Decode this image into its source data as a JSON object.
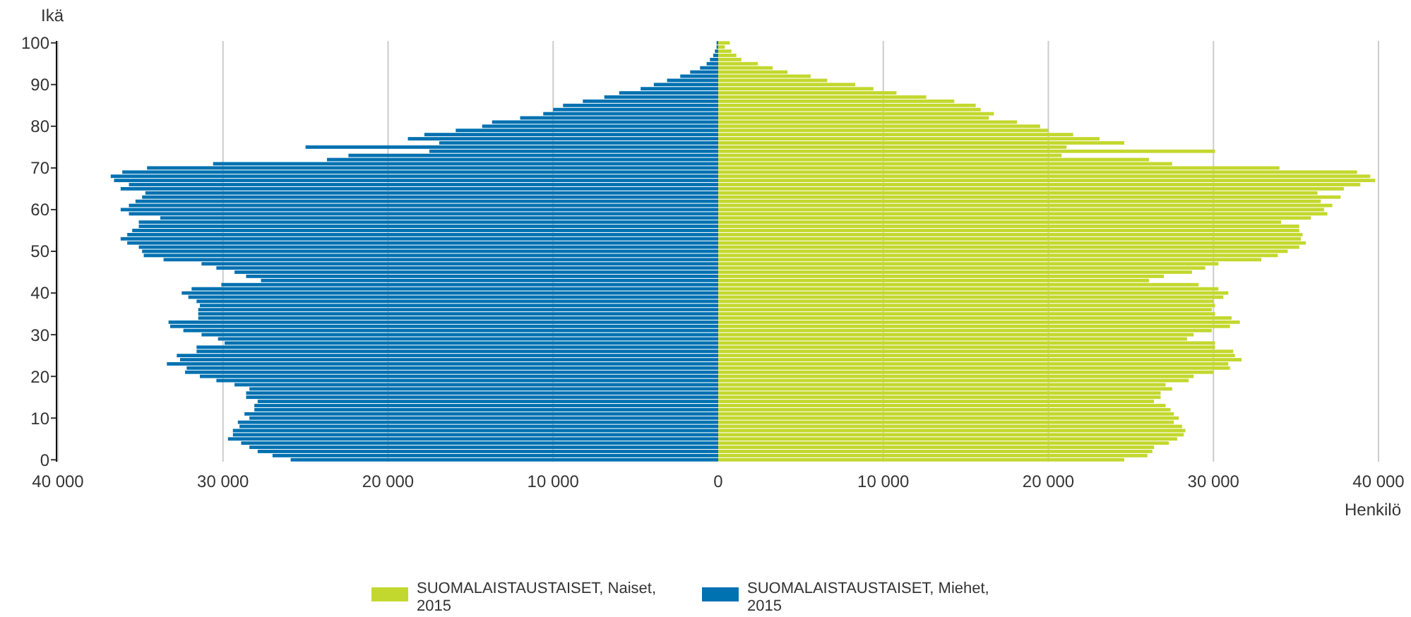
{
  "chart_data": {
    "type": "bar",
    "orientation": "horizontal",
    "stacked": true,
    "ylabel": "Ikä",
    "xlabel": "Henkilö",
    "categories": [
      "100",
      null,
      null,
      null,
      null,
      null,
      null,
      null,
      null,
      null,
      "90",
      null,
      null,
      null,
      null,
      null,
      null,
      null,
      null,
      null,
      "80",
      null,
      null,
      null,
      null,
      null,
      null,
      null,
      null,
      null,
      "70",
      null,
      null,
      null,
      null,
      null,
      null,
      null,
      null,
      null,
      "60",
      null,
      null,
      null,
      null,
      null,
      null,
      null,
      null,
      null,
      "50",
      null,
      null,
      null,
      null,
      null,
      null,
      null,
      null,
      null,
      "40",
      null,
      null,
      null,
      null,
      null,
      null,
      null,
      null,
      null,
      "30",
      null,
      null,
      null,
      null,
      null,
      null,
      null,
      null,
      null,
      "20",
      null,
      null,
      null,
      null,
      null,
      null,
      null,
      null,
      null,
      "10",
      null,
      null,
      null,
      null,
      null,
      null,
      null,
      null,
      null,
      "0"
    ],
    "xlim": [
      -40000,
      40000
    ],
    "xticks": [
      {
        "value": -40000,
        "label": "40 000"
      },
      {
        "value": -30000,
        "label": "30 000"
      },
      {
        "value": -20000,
        "label": "20 000"
      },
      {
        "value": -10000,
        "label": "10 000"
      },
      0,
      {
        "value": 10000,
        "label": "10 000"
      },
      {
        "value": 20000,
        "label": "20 000"
      },
      {
        "value": 30000,
        "label": "30 000"
      },
      {
        "value": 40000,
        "label": "40 000"
      }
    ],
    "grid": "x",
    "legend": "bottom",
    "series": [
      {
        "name": "SUOMALAISTAUSTAISET, Naiset, 2015",
        "color": "#c3d82e",
        "values": [
          700,
          400,
          800,
          1100,
          1400,
          2400,
          3300,
          4200,
          5600,
          6600,
          8300,
          9400,
          10800,
          12600,
          14300,
          15600,
          15900,
          16700,
          16400,
          18100,
          19500,
          20000,
          21500,
          23100,
          24600,
          21100,
          30100,
          20800,
          26100,
          27500,
          34000,
          38700,
          39500,
          39800,
          38900,
          37900,
          36300,
          37700,
          36500,
          37200,
          36700,
          36900,
          35900,
          34100,
          35200,
          35200,
          35400,
          35300,
          35600,
          35200,
          34500,
          33900,
          32900,
          30300,
          29500,
          28700,
          27000,
          26100,
          29100,
          30300,
          30900,
          30600,
          30000,
          30100,
          29900,
          30100,
          31100,
          31600,
          31000,
          29900,
          28800,
          28400,
          30100,
          30100,
          31200,
          31300,
          31700,
          30900,
          31000,
          30000,
          28800,
          28500,
          27100,
          27500,
          26800,
          26800,
          26400,
          27100,
          27400,
          27600,
          27900,
          27600,
          28100,
          28300,
          28200,
          27800,
          27300,
          26400,
          26300,
          26000,
          24600
        ]
      },
      {
        "name": "SUOMALAISTAUSTAISET, Miehet, 2015",
        "color": "#0071b1",
        "values": [
          -100,
          -100,
          -200,
          -300,
          -500,
          -700,
          -1100,
          -1700,
          -2300,
          -3100,
          -3900,
          -4700,
          -6000,
          -6900,
          -8200,
          -9400,
          -10000,
          -10600,
          -12000,
          -13700,
          -14300,
          -15900,
          -17800,
          -18800,
          -16900,
          -25000,
          -17500,
          -22400,
          -23700,
          -30600,
          -34600,
          -36100,
          -36800,
          -36600,
          -35700,
          -36200,
          -34700,
          -34900,
          -35300,
          -35700,
          -36200,
          -35700,
          -33800,
          -35100,
          -35100,
          -35500,
          -35800,
          -36200,
          -35800,
          -35100,
          -34900,
          -34800,
          -33600,
          -31300,
          -30400,
          -29300,
          -28600,
          -27700,
          -30100,
          -31900,
          -32500,
          -32100,
          -31600,
          -31400,
          -31500,
          -31500,
          -31500,
          -33300,
          -33200,
          -32400,
          -31300,
          -30300,
          -29900,
          -31600,
          -31600,
          -32800,
          -32600,
          -33400,
          -32200,
          -32300,
          -31400,
          -30400,
          -29300,
          -28400,
          -28600,
          -28600,
          -27900,
          -28100,
          -28100,
          -28700,
          -28400,
          -29100,
          -29000,
          -29400,
          -29400,
          -29700,
          -28900,
          -28400,
          -27900,
          -27000,
          -25900
        ]
      }
    ]
  }
}
